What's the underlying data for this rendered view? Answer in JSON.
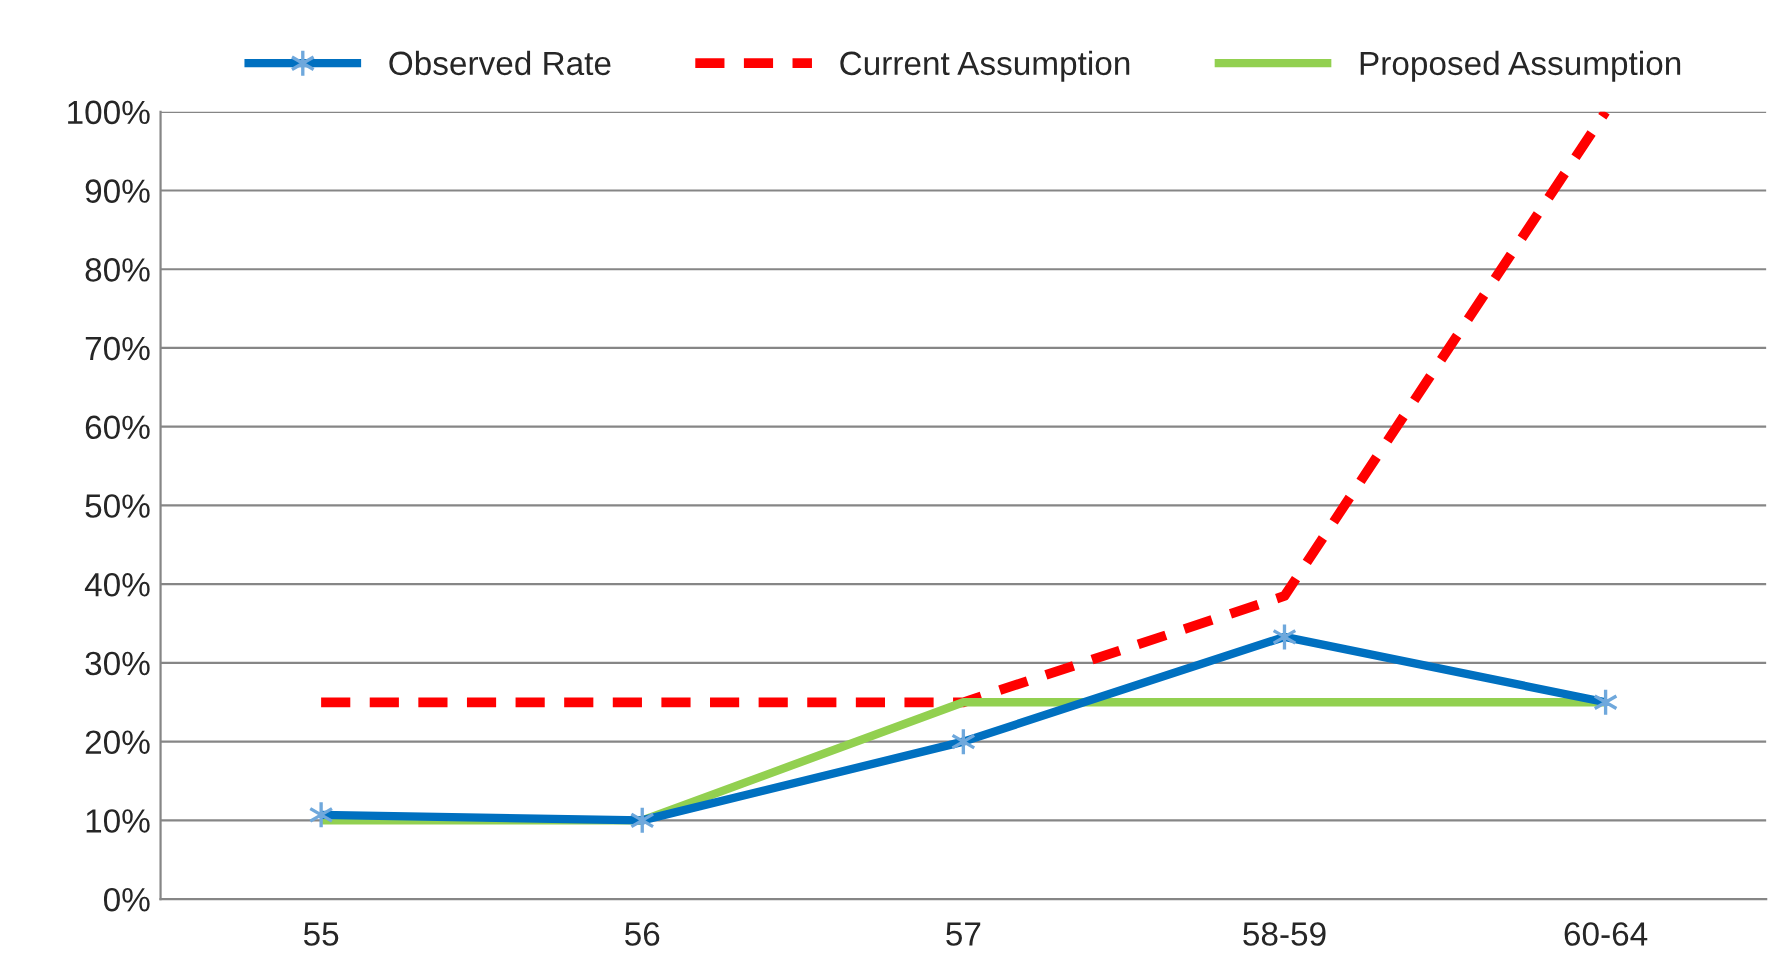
{
  "chart_data": {
    "type": "line",
    "categories": [
      "55",
      "56",
      "57",
      "58-59",
      "60-64"
    ],
    "series": [
      {
        "name": "Observed Rate",
        "color": "#0070c0",
        "values": [
          10.7,
          10,
          20,
          33.3,
          25
        ],
        "marker": "cross",
        "line_style": "solid"
      },
      {
        "name": "Current Assumption",
        "color": "#ff0000",
        "values": [
          25,
          25,
          25,
          38.5,
          100
        ],
        "marker": "none",
        "line_style": "dashed"
      },
      {
        "name": "Proposed Assumption",
        "color": "#92d050",
        "values": [
          10,
          10,
          25,
          25,
          25
        ],
        "marker": "none",
        "line_style": "solid"
      }
    ],
    "ylim": [
      0,
      100
    ],
    "yticks": [
      {
        "value": 0,
        "label": "0%"
      },
      {
        "value": 10,
        "label": "10%"
      },
      {
        "value": 20,
        "label": "20%"
      },
      {
        "value": 30,
        "label": "30%"
      },
      {
        "value": 40,
        "label": "40%"
      },
      {
        "value": 50,
        "label": "50%"
      },
      {
        "value": 60,
        "label": "60%"
      },
      {
        "value": 70,
        "label": "70%"
      },
      {
        "value": 80,
        "label": "80%"
      },
      {
        "value": 90,
        "label": "90%"
      },
      {
        "value": 100,
        "label": "100%"
      }
    ],
    "grid": "y",
    "legend": "top"
  }
}
